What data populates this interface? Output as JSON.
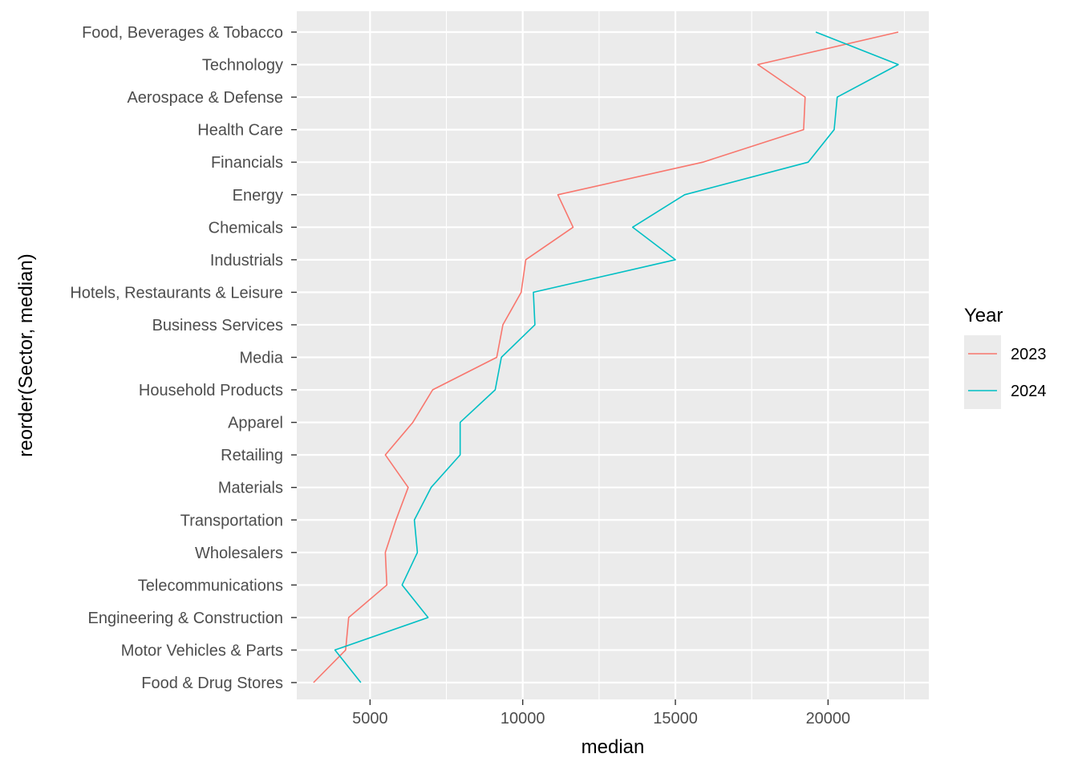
{
  "chart_data": {
    "type": "line",
    "xlabel": "median",
    "ylabel": "reorder(Sector, median)",
    "xlim": [
      2600,
      23300
    ],
    "x_ticks": [
      5000,
      10000,
      15000,
      20000
    ],
    "x_tick_labels": [
      "5000",
      "10000",
      "15000",
      "20000"
    ],
    "grid": true,
    "legend_position": "right",
    "legend_title": "Year",
    "categories": [
      "Food, Beverages & Tobacco",
      "Technology",
      "Aerospace & Defense",
      "Health Care",
      "Financials",
      "Energy",
      "Chemicals",
      "Industrials",
      "Hotels, Restaurants & Leisure",
      "Business Services",
      "Media",
      "Household Products",
      "Apparel",
      "Retailing",
      "Materials",
      "Transportation",
      "Wholesalers",
      "Telecommunications",
      "Engineering & Construction",
      "Motor Vehicles & Parts",
      "Food & Drug Stores"
    ],
    "series": [
      {
        "name": "2023",
        "color": "#F8766D",
        "values": [
          22300,
          17700,
          19250,
          19200,
          15900,
          11150,
          11650,
          10100,
          9950,
          9350,
          9150,
          7050,
          6400,
          5500,
          6250,
          5850,
          5500,
          5550,
          4300,
          4200,
          3150
        ]
      },
      {
        "name": "2024",
        "color": "#00BFC4",
        "values": [
          19600,
          22300,
          20300,
          20200,
          19350,
          15300,
          13600,
          15000,
          10350,
          10400,
          9300,
          9100,
          7950,
          7950,
          7000,
          6450,
          6550,
          6050,
          6900,
          3850,
          4700
        ]
      }
    ]
  }
}
